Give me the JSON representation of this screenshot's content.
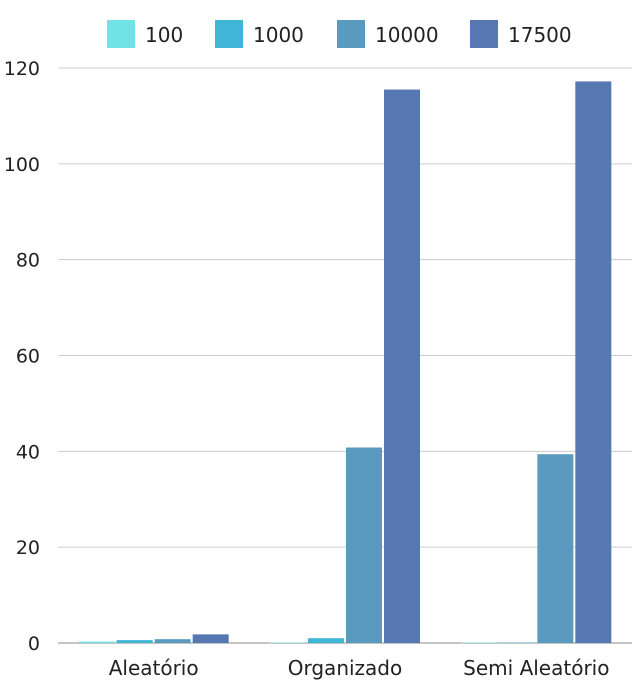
{
  "chart_data": {
    "type": "bar",
    "categories": [
      "Aleatório",
      "Organizado",
      "Semi Aleatório"
    ],
    "series": [
      {
        "name": "100",
        "color": "#6fe3e6",
        "values": [
          0.3,
          0.1,
          0.1
        ]
      },
      {
        "name": "1000",
        "color": "#3fb6d6",
        "values": [
          0.6,
          1.0,
          0.1
        ]
      },
      {
        "name": "10000",
        "color": "#5b9abf",
        "values": [
          0.8,
          40.8,
          39.4
        ]
      },
      {
        "name": "17500",
        "color": "#5677b1",
        "values": [
          1.8,
          115.5,
          117.2
        ]
      }
    ],
    "yticks": [
      0,
      20,
      40,
      60,
      80,
      100,
      120
    ],
    "ylim": [
      0,
      120
    ],
    "grid": true,
    "legend_position": "top-center",
    "title": "",
    "xlabel": "",
    "ylabel": ""
  }
}
